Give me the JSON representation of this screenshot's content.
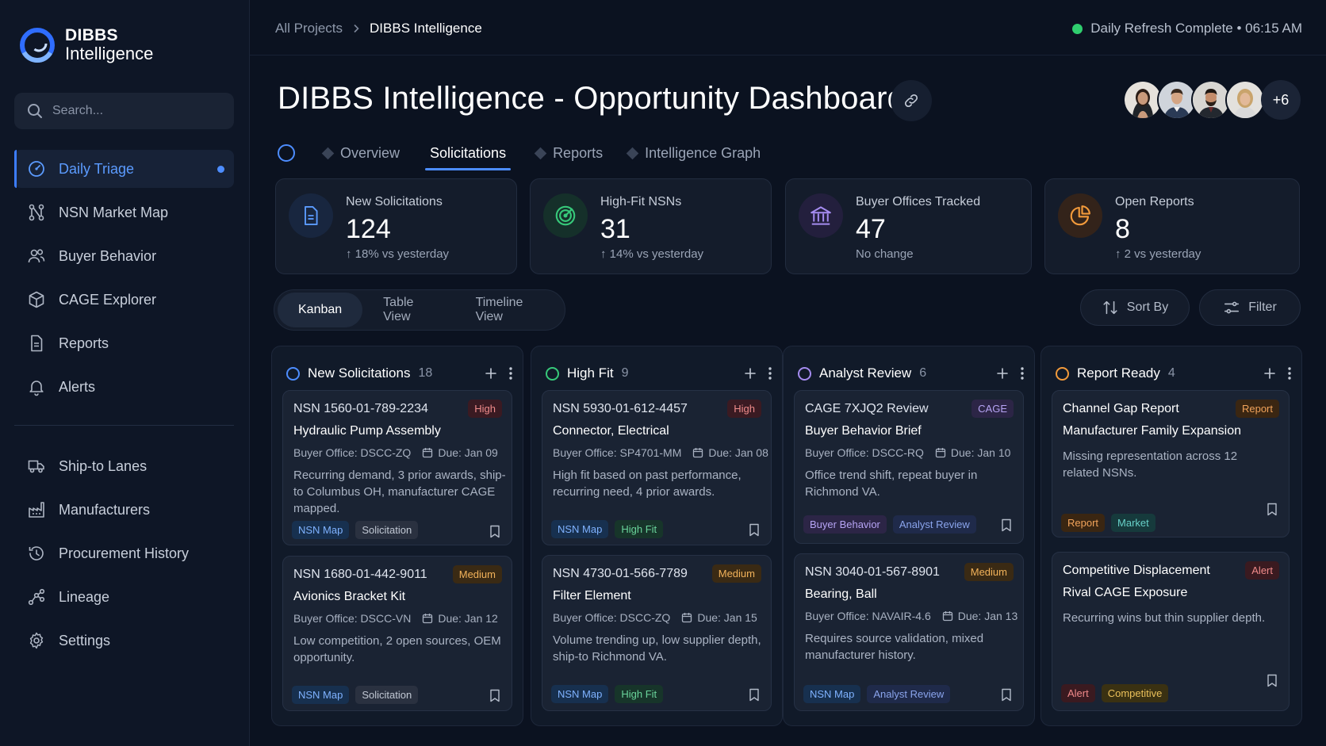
{
  "brand": {
    "line1": "DIBBS",
    "line2": "Intelligence"
  },
  "search": {
    "placeholder": "Search..."
  },
  "nav": {
    "primary": [
      {
        "label": "Daily Triage",
        "icon": "gauge-icon",
        "active": true
      },
      {
        "label": "NSN Market Map",
        "icon": "network-icon"
      },
      {
        "label": "Buyer Behavior",
        "icon": "users-icon"
      },
      {
        "label": "CAGE Explorer",
        "icon": "cube-icon"
      },
      {
        "label": "Reports",
        "icon": "document-icon"
      },
      {
        "label": "Alerts",
        "icon": "bell-icon"
      }
    ],
    "secondary": [
      {
        "label": "Ship-to Lanes",
        "icon": "truck-icon"
      },
      {
        "label": "Manufacturers",
        "icon": "factory-icon"
      },
      {
        "label": "Procurement History",
        "icon": "history-icon"
      },
      {
        "label": "Lineage",
        "icon": "lineage-icon"
      },
      {
        "label": "Settings",
        "icon": "gear-icon"
      }
    ]
  },
  "breadcrumb": {
    "root": "All Projects",
    "current": "DIBBS Intelligence"
  },
  "status": {
    "text": "Daily Refresh Complete • 06:15 AM",
    "color": "#2fce6e"
  },
  "page": {
    "title": "DIBBS Intelligence - Opportunity Dashboard"
  },
  "collaborators": {
    "more": "+6"
  },
  "tabs": [
    {
      "label": "Overview"
    },
    {
      "label": "Solicitations",
      "active": true
    },
    {
      "label": "Reports"
    },
    {
      "label": "Intelligence Graph"
    }
  ],
  "stats": [
    {
      "label": "New Solicitations",
      "value": "124",
      "delta": "18% vs yesterday",
      "icon": "document-icon",
      "color": "#5b9bff"
    },
    {
      "label": "High-Fit NSNs",
      "value": "31",
      "delta": "14% vs yesterday",
      "icon": "target-icon",
      "color": "#37c97a"
    },
    {
      "label": "Buyer Offices Tracked",
      "value": "47",
      "delta": "No change",
      "icon": "bank-icon",
      "color": "#a58cf0"
    },
    {
      "label": "Open Reports",
      "value": "8",
      "delta": "2 vs yesterday",
      "icon": "pie-chart-icon",
      "color": "#f29a3b"
    }
  ],
  "views": {
    "kanban": "Kanban",
    "table": "Table View",
    "timeline": "Timeline View"
  },
  "toolbar": {
    "sort": "Sort By",
    "filter": "Filter"
  },
  "columns": [
    {
      "title": "New Solicitations",
      "count": "18",
      "color": "#4d8dff",
      "cards": [
        {
          "nsn": "NSN 1560-01-789-2234",
          "badge": "High",
          "title": "Hydraulic Pump Assembly",
          "office": "Buyer Office: DSCC-ZQ",
          "due": "Due: Jan 09",
          "desc": "Recurring demand, 3 prior awards, ship-to Columbus OH, manufacturer CAGE mapped.",
          "tags": [
            "NSN Map",
            "Solicitation"
          ]
        },
        {
          "nsn": "NSN 1680-01-442-9011",
          "badge": "Medium",
          "title": "Avionics Bracket Kit",
          "office": "Buyer Office: DSCC-VN",
          "due": "Due: Jan 12",
          "desc": "Low competition, 2 open sources, OEM opportunity.",
          "tags": [
            "NSN Map",
            "Solicitation"
          ]
        }
      ]
    },
    {
      "title": "High Fit",
      "count": "9",
      "color": "#37c97a",
      "cards": [
        {
          "nsn": "NSN 5930-01-612-4457",
          "badge": "High",
          "title": "Connector, Electrical",
          "office": "Buyer Office: SP4701-MM",
          "due": "Due: Jan 08",
          "desc": "High fit based on past performance, recurring need, 4 prior awards.",
          "tags": [
            "NSN Map",
            "High Fit"
          ]
        },
        {
          "nsn": "NSN 4730-01-566-7789",
          "badge": "Medium",
          "title": "Filter Element",
          "office": "Buyer Office: DSCC-ZQ",
          "due": "Due: Jan 15",
          "desc": "Volume trending up, low supplier depth, ship-to Richmond VA.",
          "tags": [
            "NSN Map",
            "High Fit"
          ]
        }
      ]
    },
    {
      "title": "Analyst Review",
      "count": "6",
      "color": "#a58cf0",
      "cards": [
        {
          "nsn": "CAGE 7XJQ2 Review",
          "badge": "CAGE",
          "title": "Buyer Behavior Brief",
          "office": "Buyer Office: DSCC-RQ",
          "due": "Due: Jan 10",
          "desc": "Office trend shift, repeat buyer in Richmond VA.",
          "tags": [
            "Buyer Behavior",
            "Analyst Review"
          ]
        },
        {
          "nsn": "NSN 3040-01-567-8901",
          "badge": "Medium",
          "title": "Bearing, Ball",
          "office": "Buyer Office: NAVAIR-4.6",
          "due": "Due: Jan 13",
          "desc": "Requires source validation, mixed manufacturer history.",
          "tags": [
            "NSN Map",
            "Analyst Review"
          ]
        }
      ]
    },
    {
      "title": "Report Ready",
      "count": "4",
      "color": "#f29a3b",
      "cards": [
        {
          "nsn": "Channel Gap Report",
          "badge": "Report",
          "title": "Manufacturer Family Expansion",
          "desc": "Missing representation across 12 related NSNs.",
          "tags": [
            "Report",
            "Market"
          ]
        },
        {
          "nsn": "Competitive Displacement",
          "badge": "Alert",
          "title": "Rival CAGE Exposure",
          "desc": "Recurring wins but thin supplier depth.",
          "tags": [
            "Alert",
            "Competitive"
          ]
        }
      ]
    }
  ]
}
